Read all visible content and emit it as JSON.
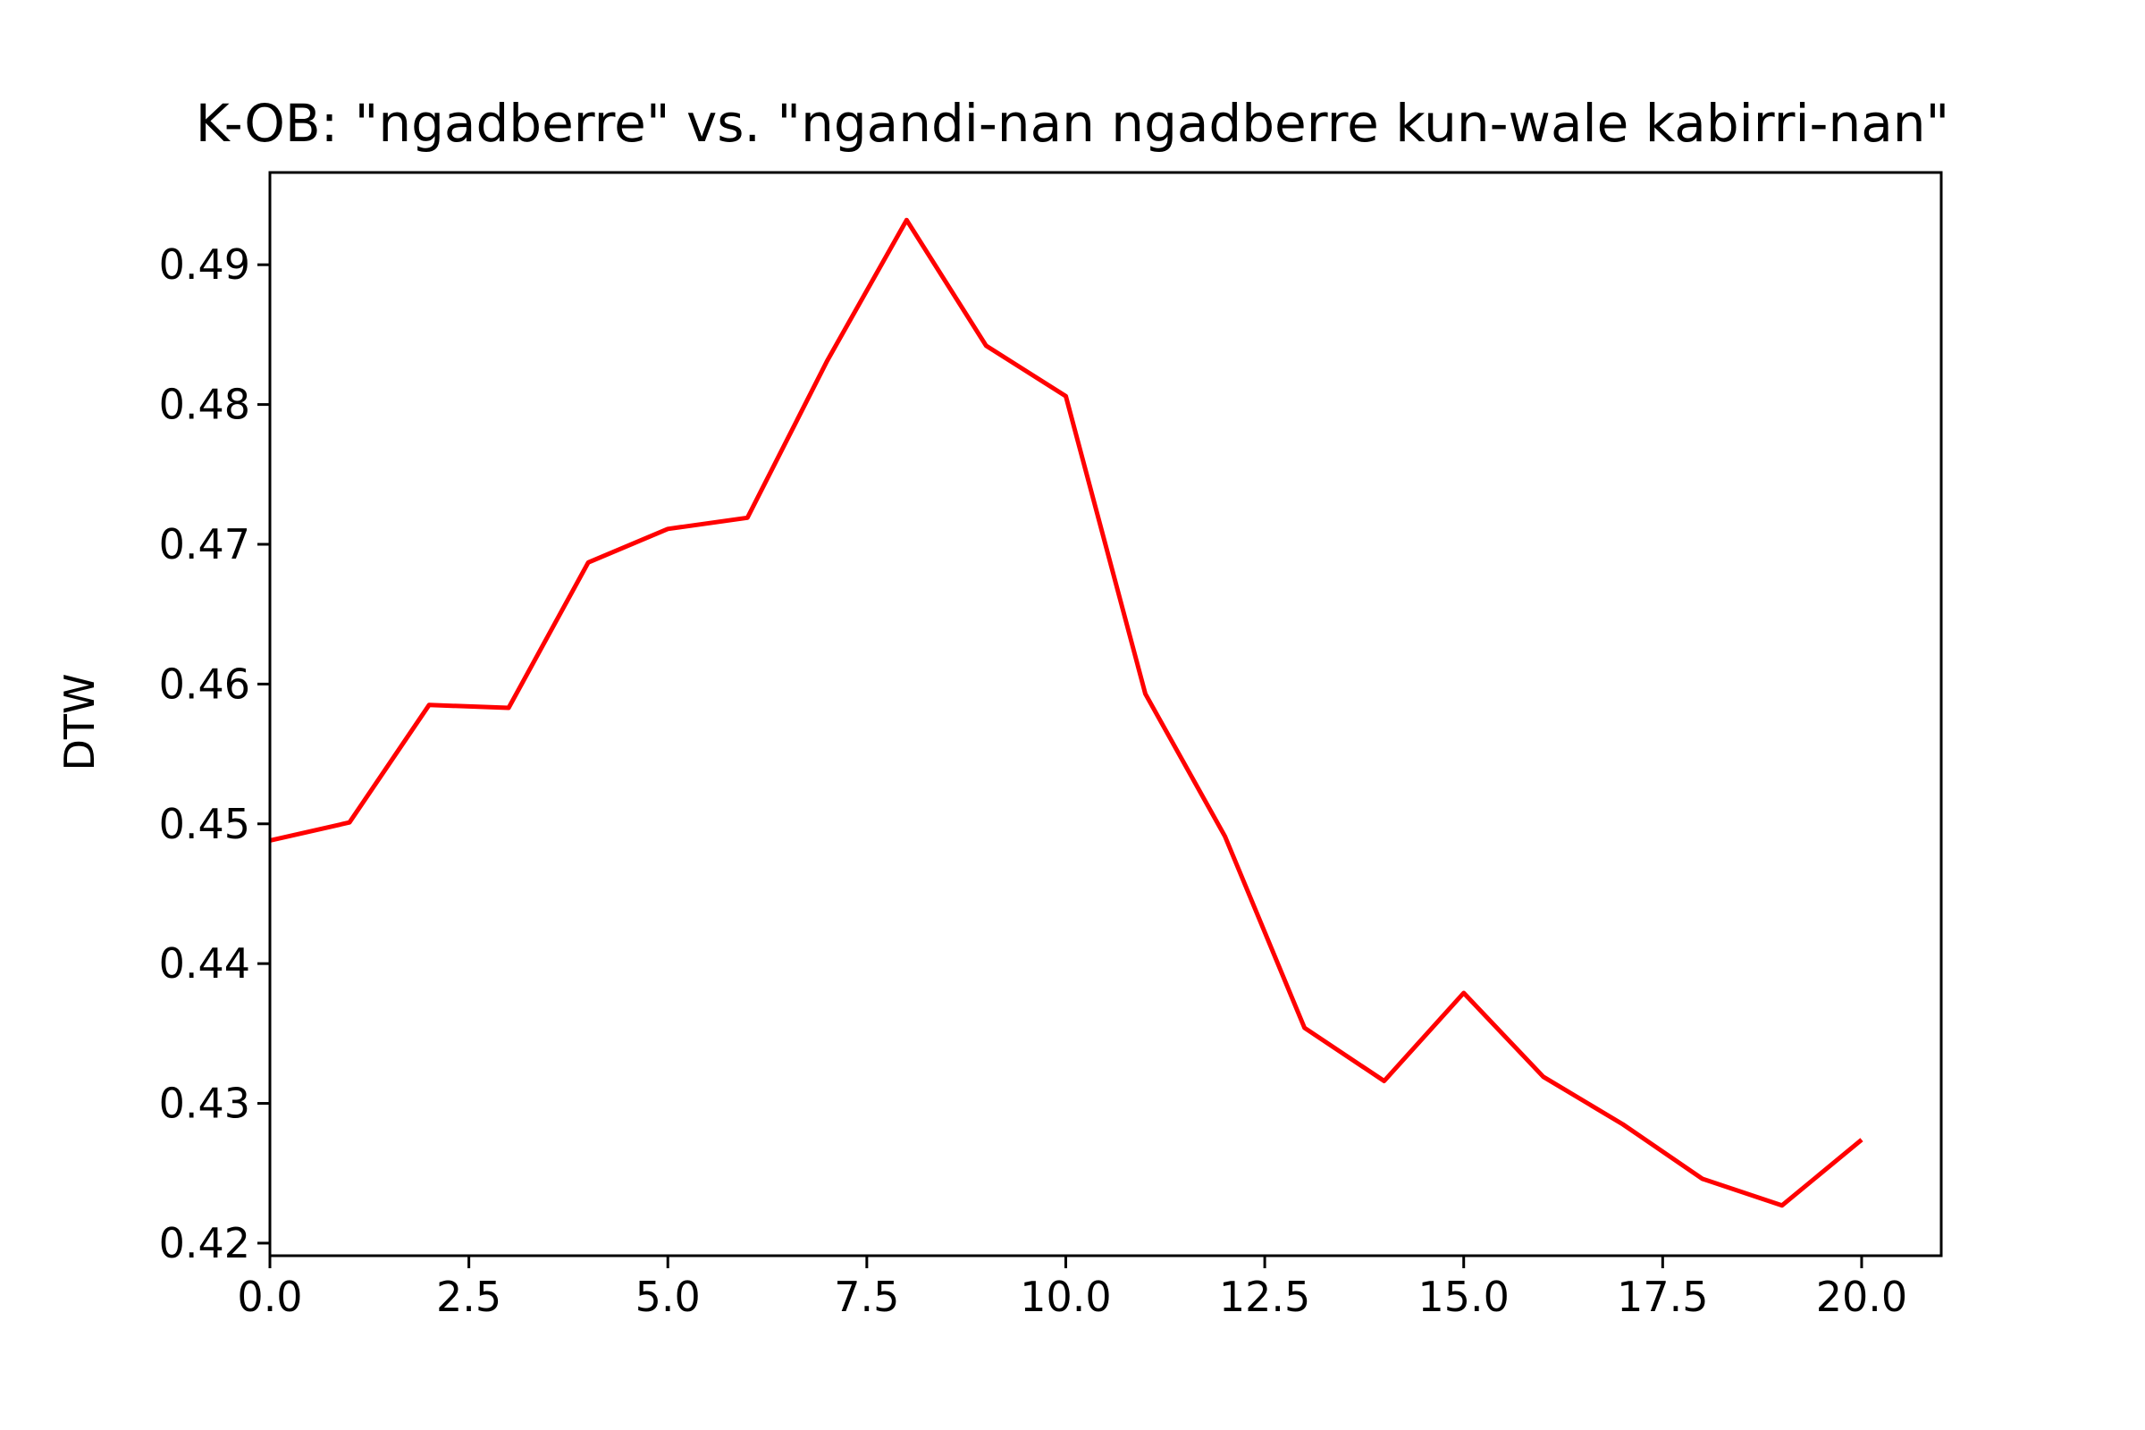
{
  "chart_data": {
    "type": "line",
    "title": "K-OB: \"ngadberre\" vs. \"ngandi-nan ngadberre kun-wale kabirri-nan\"",
    "xlabel": "",
    "ylabel": "DTW",
    "xlim": [
      0,
      21
    ],
    "ylim": [
      0.4191,
      0.4966
    ],
    "x_ticks": [
      0,
      2.5,
      5,
      7.5,
      10,
      12.5,
      15,
      17.5,
      20
    ],
    "x_tick_labels": [
      "0.0",
      "2.5",
      "5.0",
      "7.5",
      "10.0",
      "12.5",
      "15.0",
      "17.5",
      "20.0"
    ],
    "y_ticks": [
      0.42,
      0.43,
      0.44,
      0.45,
      0.46,
      0.47,
      0.48,
      0.49
    ],
    "y_tick_labels": [
      "0.42",
      "0.43",
      "0.44",
      "0.45",
      "0.46",
      "0.47",
      "0.48",
      "0.49"
    ],
    "grid": false,
    "legend": "none",
    "series": [
      {
        "color": "#ff0000",
        "x": [
          0,
          1,
          2,
          3,
          4,
          5,
          6,
          7,
          8,
          9,
          10,
          11,
          12,
          13,
          14,
          15,
          16,
          17,
          18,
          19,
          20
        ],
        "values": [
          0.4488,
          0.4501,
          0.4585,
          0.4583,
          0.4687,
          0.4711,
          0.4719,
          0.4831,
          0.4932,
          0.4842,
          0.4806,
          0.4593,
          0.4491,
          0.4354,
          0.4316,
          0.4379,
          0.4319,
          0.4285,
          0.4246,
          0.4227,
          0.4274
        ]
      }
    ]
  }
}
